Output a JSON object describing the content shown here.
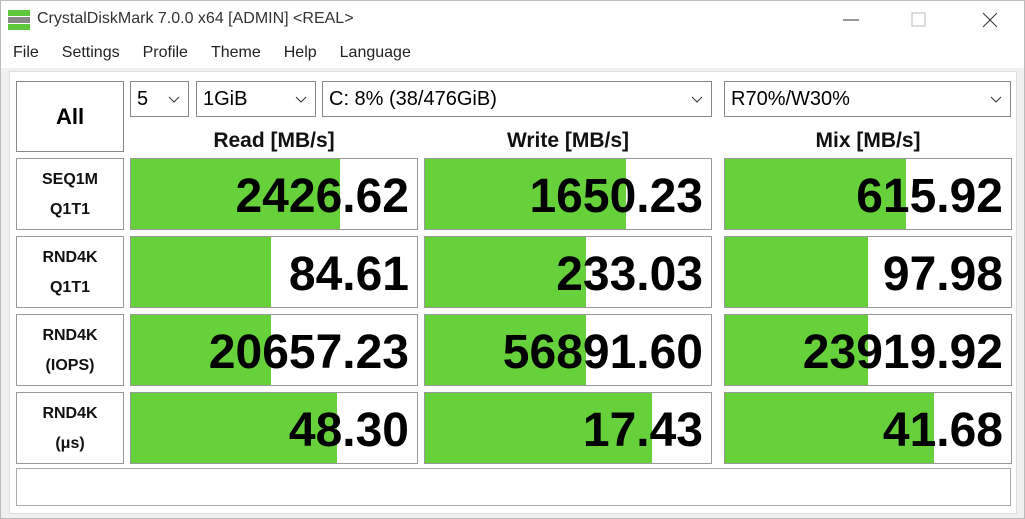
{
  "window": {
    "title": "CrystalDiskMark 7.0.0 x64 [ADMIN] <REAL>"
  },
  "menu": [
    "File",
    "Settings",
    "Profile",
    "Theme",
    "Help",
    "Language"
  ],
  "controls": {
    "all": "All",
    "count": "5",
    "size": "1GiB",
    "drive": "C: 8% (38/476GiB)",
    "mix": "R70%/W30%"
  },
  "headers": [
    "Read [MB/s]",
    "Write [MB/s]",
    "Mix [MB/s]"
  ],
  "rows": [
    {
      "label": [
        "SEQ1M",
        "Q1T1"
      ],
      "values": [
        "2426.62",
        "1650.23",
        "615.92"
      ]
    },
    {
      "label": [
        "RND4K",
        "Q1T1"
      ],
      "values": [
        "84.61",
        "233.03",
        "97.98"
      ]
    },
    {
      "label": [
        "RND4K",
        "(IOPS)"
      ],
      "values": [
        "20657.23",
        "56891.60",
        "23919.92"
      ]
    },
    {
      "label": [
        "RND4K",
        "(μs)"
      ],
      "values": [
        "48.30",
        "17.43",
        "41.68"
      ]
    }
  ]
}
